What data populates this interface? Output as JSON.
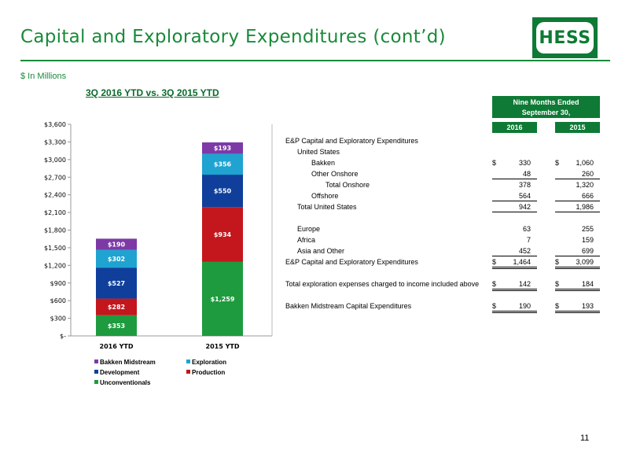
{
  "header": {
    "title": "Capital and Exploratory Expenditures (cont’d)",
    "logo_text": "HESS",
    "units": "$ In Millions"
  },
  "chart_title": "3Q 2016 YTD vs. 3Q 2015 YTD",
  "chart_data": {
    "type": "bar",
    "stacked": true,
    "categories": [
      "2016 YTD",
      "2015 YTD"
    ],
    "series": [
      {
        "name": "Unconventionals",
        "color": "#1e9b3f",
        "values": [
          353,
          1259
        ],
        "labels": [
          "$353",
          "$1,259"
        ]
      },
      {
        "name": "Production",
        "color": "#c3171d",
        "values": [
          282,
          934
        ],
        "labels": [
          "$282",
          "$934"
        ]
      },
      {
        "name": "Development",
        "color": "#0f3f9b",
        "values": [
          527,
          550
        ],
        "labels": [
          "$527",
          "$550"
        ]
      },
      {
        "name": "Exploration",
        "color": "#1fa3d0",
        "values": [
          302,
          356
        ],
        "labels": [
          "$302",
          "$356"
        ]
      },
      {
        "name": "Bakken Midstream",
        "color": "#7d3aa6",
        "values": [
          190,
          193
        ],
        "labels": [
          "$190",
          "$193"
        ]
      }
    ],
    "yticks": [
      "$-",
      "$300",
      "$600",
      "$900",
      "$1,200",
      "$1,500",
      "$1,800",
      "$2,100",
      "$2,400",
      "$2,700",
      "$3,000",
      "$3,300",
      "$3,600"
    ],
    "ylim": [
      0,
      3600
    ],
    "legend_order": [
      "Bakken Midstream",
      "Exploration",
      "Development",
      "Production",
      "Unconventionals"
    ],
    "legend_position": "bottom"
  },
  "table": {
    "header_line1": "Nine Months Ended",
    "header_line2": "September 30,",
    "col_2016": "2016",
    "col_2015": "2015",
    "rows": [
      {
        "label": "E&P Capital and Exploratory Expenditures",
        "indent": 0,
        "v2016": "",
        "v2015": "",
        "dollar": false,
        "line": ""
      },
      {
        "label": "United States",
        "indent": 1,
        "v2016": "",
        "v2015": "",
        "dollar": false,
        "line": ""
      },
      {
        "label": "Bakken",
        "indent": 2,
        "v2016": "330",
        "v2015": "1,060",
        "dollar": true,
        "line": ""
      },
      {
        "label": "Other Onshore",
        "indent": 2,
        "v2016": "48",
        "v2015": "260",
        "dollar": false,
        "line": "single"
      },
      {
        "label": "Total Onshore",
        "indent": 3,
        "v2016": "378",
        "v2015": "1,320",
        "dollar": false,
        "line": ""
      },
      {
        "label": "Offshore",
        "indent": 2,
        "v2016": "564",
        "v2015": "666",
        "dollar": false,
        "line": "single"
      },
      {
        "label": "Total United States",
        "indent": 1,
        "v2016": "942",
        "v2015": "1,986",
        "dollar": false,
        "line": "single"
      },
      {
        "label": "",
        "indent": 0,
        "v2016": "",
        "v2015": "",
        "dollar": false,
        "line": ""
      },
      {
        "label": "Europe",
        "indent": 1,
        "v2016": "63",
        "v2015": "255",
        "dollar": false,
        "line": ""
      },
      {
        "label": "Africa",
        "indent": 1,
        "v2016": "7",
        "v2015": "159",
        "dollar": false,
        "line": ""
      },
      {
        "label": "Asia and Other",
        "indent": 1,
        "v2016": "452",
        "v2015": "699",
        "dollar": false,
        "line": "single"
      },
      {
        "label": "E&P Capital and Exploratory Expenditures",
        "indent": 0,
        "v2016": "1,464",
        "v2015": "3,099",
        "dollar": true,
        "line": "double"
      },
      {
        "label": "",
        "indent": 0,
        "v2016": "",
        "v2015": "",
        "dollar": false,
        "line": ""
      },
      {
        "label": "Total exploration expenses charged to income included above",
        "indent": 0,
        "v2016": "142",
        "v2015": "184",
        "dollar": true,
        "line": "double"
      },
      {
        "label": "",
        "indent": 0,
        "v2016": "",
        "v2015": "",
        "dollar": false,
        "line": ""
      },
      {
        "label": "Bakken Midstream Capital Expenditures",
        "indent": 0,
        "v2016": "190",
        "v2015": "193",
        "dollar": true,
        "line": "double"
      }
    ]
  },
  "page_number": "11"
}
